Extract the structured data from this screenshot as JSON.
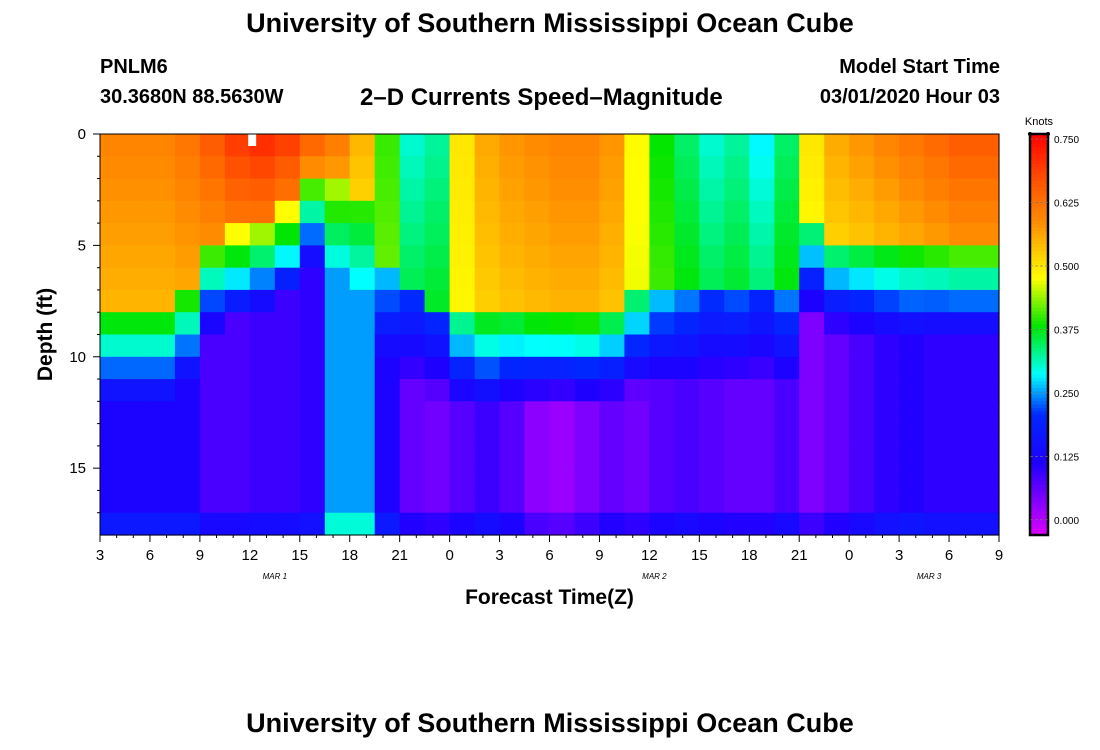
{
  "header": {
    "title": "University of Southern Mississippi Ocean Cube",
    "station": "PNLM6",
    "coords": "30.3680N 88.5630W",
    "subtitle": "2–D Currents Speed–Magnitude",
    "model_start_label": "Model Start Time",
    "model_start_value": "03/01/2020 Hour 03"
  },
  "footer": {
    "title": "University of Southern Mississippi Ocean Cube"
  },
  "chart_data": {
    "type": "heatmap",
    "xlabel": "Forecast Time(Z)",
    "ylabel": "Depth (ft)",
    "x_range_hours": [
      0,
      54
    ],
    "y_range_ft": [
      0,
      18
    ],
    "y_reversed": true,
    "x_ticks": [
      {
        "hour": 0,
        "label": "3"
      },
      {
        "hour": 3,
        "label": "6"
      },
      {
        "hour": 6,
        "label": "9"
      },
      {
        "hour": 9,
        "label": "12"
      },
      {
        "hour": 12,
        "label": "15"
      },
      {
        "hour": 15,
        "label": "18"
      },
      {
        "hour": 18,
        "label": "21"
      },
      {
        "hour": 21,
        "label": "0"
      },
      {
        "hour": 24,
        "label": "3"
      },
      {
        "hour": 27,
        "label": "6"
      },
      {
        "hour": 30,
        "label": "9"
      },
      {
        "hour": 33,
        "label": "12"
      },
      {
        "hour": 36,
        "label": "15"
      },
      {
        "hour": 39,
        "label": "18"
      },
      {
        "hour": 42,
        "label": "21"
      },
      {
        "hour": 45,
        "label": "0"
      },
      {
        "hour": 48,
        "label": "3"
      },
      {
        "hour": 51,
        "label": "6"
      },
      {
        "hour": 54,
        "label": "9"
      }
    ],
    "date_labels": [
      {
        "hour": 10.5,
        "label": "MAR 1"
      },
      {
        "hour": 33.3,
        "label": "MAR 2"
      },
      {
        "hour": 49.8,
        "label": "MAR 3"
      }
    ],
    "y_ticks": [
      0,
      5,
      10,
      15
    ],
    "colorbar": {
      "label": "Knots",
      "min": -0.03,
      "max": 0.76,
      "ticks": [
        "0.750",
        "0.625",
        "0.500",
        "0.375",
        "0.250",
        "0.125",
        "0.000"
      ]
    },
    "column_hours": [
      0,
      1.5,
      3,
      4.5,
      6,
      7.5,
      9,
      10.5,
      12,
      13.5,
      15,
      16.5,
      18,
      19.5,
      21,
      22.5,
      24,
      25.5,
      27,
      28.5,
      30,
      31.5,
      33,
      34.5,
      36,
      37.5,
      39,
      40.5,
      42,
      43.5,
      45,
      46.5,
      48,
      49.5,
      51,
      52.5,
      54
    ],
    "surface_speed_knots": [
      0.6,
      0.6,
      0.6,
      0.62,
      0.66,
      0.7,
      0.72,
      0.7,
      0.66,
      0.62,
      0.55,
      0.4,
      0.3,
      0.32,
      0.5,
      0.56,
      0.58,
      0.59,
      0.6,
      0.6,
      0.58,
      0.48,
      0.38,
      0.34,
      0.3,
      0.32,
      0.28,
      0.34,
      0.5,
      0.56,
      0.58,
      0.6,
      0.62,
      0.64,
      0.66,
      0.66,
      0.66
    ],
    "mixed_layer_depth_ft": [
      7.5,
      7.5,
      7.5,
      6.5,
      4.5,
      4.0,
      3.5,
      3.0,
      1.5,
      2.0,
      3.0,
      5.5,
      7.0,
      7.5,
      7.8,
      7.8,
      7.6,
      7.8,
      7.8,
      7.8,
      7.5,
      7.2,
      7.0,
      7.0,
      7.0,
      7.0,
      7.0,
      7.0,
      4.0,
      4.5,
      4.5,
      4.5,
      4.5,
      4.5,
      4.5,
      4.5,
      5.0
    ],
    "bottom_speed_knots": [
      0.12,
      0.12,
      0.12,
      0.12,
      0.08,
      0.08,
      0.09,
      0.09,
      0.1,
      0.25,
      0.25,
      0.12,
      0.06,
      0.05,
      0.07,
      0.09,
      0.07,
      0.03,
      0.02,
      0.04,
      0.06,
      0.05,
      0.07,
      0.08,
      0.07,
      0.06,
      0.06,
      0.08,
      0.04,
      0.06,
      0.08,
      0.1,
      0.11,
      0.1,
      0.1,
      0.1,
      0.12
    ],
    "max_speed_knots": 0.75,
    "min_speed_knots": 0.0
  }
}
